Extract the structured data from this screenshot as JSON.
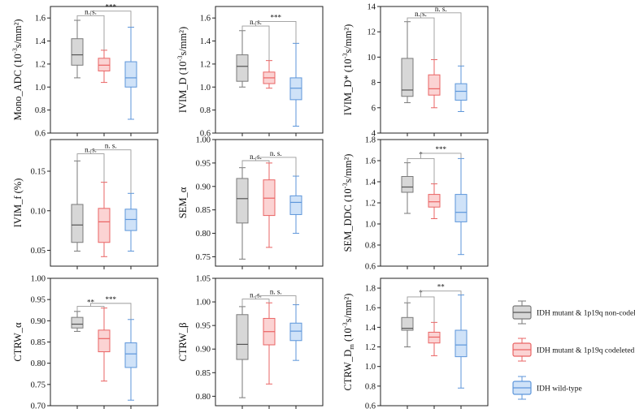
{
  "colors": {
    "gray": {
      "fill": "#d7d7d7",
      "stroke": "#7a7a7a",
      "median": "#555555"
    },
    "red": {
      "fill": "#fbd3d3",
      "stroke": "#ea6464",
      "median": "#ea6464"
    },
    "blue": {
      "fill": "#cfe2f8",
      "stroke": "#5d96da",
      "median": "#5d96da"
    },
    "bracket": "#9a9a9a"
  },
  "legend": {
    "items": [
      {
        "key": "gray",
        "label": "IDH mutant & 1p19q non-codeleted"
      },
      {
        "key": "red",
        "label": "IDH mutant & 1p19q codeleted"
      },
      {
        "key": "blue",
        "label": "IDH wild-type"
      }
    ]
  },
  "chart_data": [
    {
      "type": "box",
      "ylabel": "Mono_ADC (10⁻³s/mm²)",
      "ylim": [
        0.6,
        1.7
      ],
      "yticks": [
        0.6,
        0.8,
        1.0,
        1.2,
        1.4,
        1.6
      ],
      "tick_labels": [
        "0.6",
        "0.8",
        "1.0",
        "1.2",
        "1.4",
        "1.6"
      ],
      "groups": [
        {
          "color": "gray",
          "min": 1.08,
          "q1": 1.19,
          "median": 1.28,
          "q3": 1.42,
          "max": 1.58
        },
        {
          "color": "red",
          "min": 1.04,
          "q1": 1.14,
          "median": 1.19,
          "q3": 1.25,
          "max": 1.32
        },
        {
          "color": "blue",
          "min": 0.72,
          "q1": 1.0,
          "median": 1.08,
          "q3": 1.22,
          "max": 1.52
        }
      ],
      "significance": [
        {
          "label": "n. s.",
          "y": 1.62
        },
        {
          "label": "***",
          "y": 1.66
        }
      ]
    },
    {
      "type": "box",
      "ylabel": "IVIM_D (10⁻³s/mm²)",
      "ylim": [
        0.6,
        1.7
      ],
      "yticks": [
        0.6,
        0.8,
        1.0,
        1.2,
        1.4,
        1.6
      ],
      "tick_labels": [
        "0.6",
        "0.8",
        "1.0",
        "1.2",
        "1.4",
        "1.6"
      ],
      "groups": [
        {
          "color": "gray",
          "min": 1.0,
          "q1": 1.05,
          "median": 1.18,
          "q3": 1.28,
          "max": 1.49
        },
        {
          "color": "red",
          "min": 0.99,
          "q1": 1.03,
          "median": 1.08,
          "q3": 1.13,
          "max": 1.23
        },
        {
          "color": "blue",
          "min": 0.66,
          "q1": 0.89,
          "median": 0.99,
          "q3": 1.08,
          "max": 1.38
        }
      ],
      "significance": [
        {
          "label": "n. s.",
          "y": 1.53
        },
        {
          "label": "***",
          "y": 1.57
        }
      ]
    },
    {
      "type": "box",
      "ylabel": "IVIM_D* (10⁻³s/mm²)",
      "ylim": [
        4,
        14
      ],
      "yticks": [
        4,
        6,
        8,
        10,
        12,
        14
      ],
      "tick_labels": [
        "4",
        "6",
        "8",
        "10",
        "12",
        "14"
      ],
      "groups": [
        {
          "color": "gray",
          "min": 6.4,
          "q1": 6.9,
          "median": 7.4,
          "q3": 9.9,
          "max": 12.8
        },
        {
          "color": "red",
          "min": 6.0,
          "q1": 7.0,
          "median": 7.5,
          "q3": 8.6,
          "max": 9.8
        },
        {
          "color": "blue",
          "min": 5.7,
          "q1": 6.6,
          "median": 7.3,
          "q3": 7.9,
          "max": 9.3
        }
      ],
      "significance": [
        {
          "label": "n. s.",
          "y": 13.1
        },
        {
          "label": "n. s.",
          "y": 13.5
        }
      ]
    },
    {
      "type": "box",
      "ylabel": "IVIM_f (%)",
      "ylim": [
        0.03,
        0.19
      ],
      "yticks": [
        0.05,
        0.1,
        0.15
      ],
      "tick_labels": [
        "0.05",
        "0.10",
        "0.15"
      ],
      "groups": [
        {
          "color": "gray",
          "min": 0.049,
          "q1": 0.06,
          "median": 0.082,
          "q3": 0.108,
          "max": 0.163
        },
        {
          "color": "red",
          "min": 0.042,
          "q1": 0.06,
          "median": 0.086,
          "q3": 0.103,
          "max": 0.136
        },
        {
          "color": "blue",
          "min": 0.049,
          "q1": 0.075,
          "median": 0.089,
          "q3": 0.102,
          "max": 0.122
        }
      ],
      "significance": [
        {
          "label": "n. s.",
          "y": 0.172
        },
        {
          "label": "n. s.",
          "y": 0.177
        }
      ]
    },
    {
      "type": "box",
      "ylabel": "SEM_α",
      "ylim": [
        0.73,
        1.0
      ],
      "yticks": [
        0.75,
        0.8,
        0.85,
        0.9,
        0.95,
        1.0
      ],
      "tick_labels": [
        "0.75",
        "0.80",
        "0.85",
        "0.90",
        "0.95",
        "1.00"
      ],
      "groups": [
        {
          "color": "gray",
          "min": 0.745,
          "q1": 0.822,
          "median": 0.874,
          "q3": 0.917,
          "max": 0.94
        },
        {
          "color": "red",
          "min": 0.77,
          "q1": 0.838,
          "median": 0.875,
          "q3": 0.914,
          "max": 0.95
        },
        {
          "color": "blue",
          "min": 0.8,
          "q1": 0.84,
          "median": 0.866,
          "q3": 0.88,
          "max": 0.922
        }
      ],
      "significance": [
        {
          "label": "n. s.",
          "y": 0.955
        },
        {
          "label": "n. s.",
          "y": 0.962
        }
      ]
    },
    {
      "type": "box",
      "ylabel": "SEM_DDC (10⁻³s/mm²)",
      "ylim": [
        0.6,
        1.8
      ],
      "yticks": [
        0.6,
        0.8,
        1.0,
        1.2,
        1.4,
        1.6,
        1.8
      ],
      "tick_labels": [
        "0.6",
        "0.8",
        "1.0",
        "1.2",
        "1.4",
        "1.6",
        "1.8"
      ],
      "groups": [
        {
          "color": "gray",
          "min": 1.1,
          "q1": 1.3,
          "median": 1.35,
          "q3": 1.45,
          "max": 1.58
        },
        {
          "color": "red",
          "min": 1.05,
          "q1": 1.16,
          "median": 1.21,
          "q3": 1.28,
          "max": 1.38
        },
        {
          "color": "blue",
          "min": 0.71,
          "q1": 1.02,
          "median": 1.11,
          "q3": 1.28,
          "max": 1.62
        }
      ],
      "significance": [
        {
          "label": "*",
          "y": 1.62
        },
        {
          "label": "***",
          "y": 1.67
        }
      ]
    },
    {
      "type": "box",
      "ylabel": "CTRW_α",
      "ylim": [
        0.7,
        1.0
      ],
      "yticks": [
        0.7,
        0.75,
        0.8,
        0.85,
        0.9,
        0.95,
        1.0
      ],
      "tick_labels": [
        "0.70",
        "0.75",
        "0.80",
        "0.85",
        "0.90",
        "0.95",
        "1.00"
      ],
      "groups": [
        {
          "color": "gray",
          "min": 0.875,
          "q1": 0.883,
          "median": 0.892,
          "q3": 0.908,
          "max": 0.922
        },
        {
          "color": "red",
          "min": 0.758,
          "q1": 0.827,
          "median": 0.858,
          "q3": 0.878,
          "max": 0.93
        },
        {
          "color": "blue",
          "min": 0.713,
          "q1": 0.79,
          "median": 0.822,
          "q3": 0.848,
          "max": 0.903
        }
      ],
      "significance": [
        {
          "label": "**",
          "y": 0.934
        },
        {
          "label": "***",
          "y": 0.941
        }
      ]
    },
    {
      "type": "box",
      "ylabel": "CTRW_β",
      "ylim": [
        0.78,
        1.05
      ],
      "yticks": [
        0.8,
        0.85,
        0.9,
        0.95,
        1.0,
        1.05
      ],
      "tick_labels": [
        "0.80",
        "0.85",
        "0.90",
        "0.95",
        "1.00",
        "1.05"
      ],
      "groups": [
        {
          "color": "gray",
          "min": 0.797,
          "q1": 0.878,
          "median": 0.91,
          "q3": 0.973,
          "max": 0.99
        },
        {
          "color": "red",
          "min": 0.826,
          "q1": 0.909,
          "median": 0.937,
          "q3": 0.965,
          "max": 0.998
        },
        {
          "color": "blue",
          "min": 0.876,
          "q1": 0.918,
          "median": 0.938,
          "q3": 0.955,
          "max": 0.994
        }
      ],
      "significance": [
        {
          "label": "n. s.",
          "y": 1.006
        },
        {
          "label": "n. s.",
          "y": 1.013
        }
      ]
    },
    {
      "type": "box",
      "ylabel": "CTRW_Dm (10⁻³s/mm²)",
      "ylim": [
        0.6,
        1.9
      ],
      "yticks": [
        0.6,
        0.8,
        1.0,
        1.2,
        1.4,
        1.6,
        1.8
      ],
      "tick_labels": [
        "0.6",
        "0.8",
        "1.0",
        "1.2",
        "1.4",
        "1.6",
        "1.8"
      ],
      "groups": [
        {
          "color": "gray",
          "min": 1.2,
          "q1": 1.37,
          "median": 1.39,
          "q3": 1.5,
          "max": 1.65
        },
        {
          "color": "red",
          "min": 1.11,
          "q1": 1.24,
          "median": 1.3,
          "q3": 1.35,
          "max": 1.45
        },
        {
          "color": "blue",
          "min": 0.78,
          "q1": 1.1,
          "median": 1.22,
          "q3": 1.37,
          "max": 1.73
        }
      ],
      "significance": [
        {
          "label": "*",
          "y": 1.71
        },
        {
          "label": "**",
          "y": 1.77
        }
      ]
    }
  ]
}
